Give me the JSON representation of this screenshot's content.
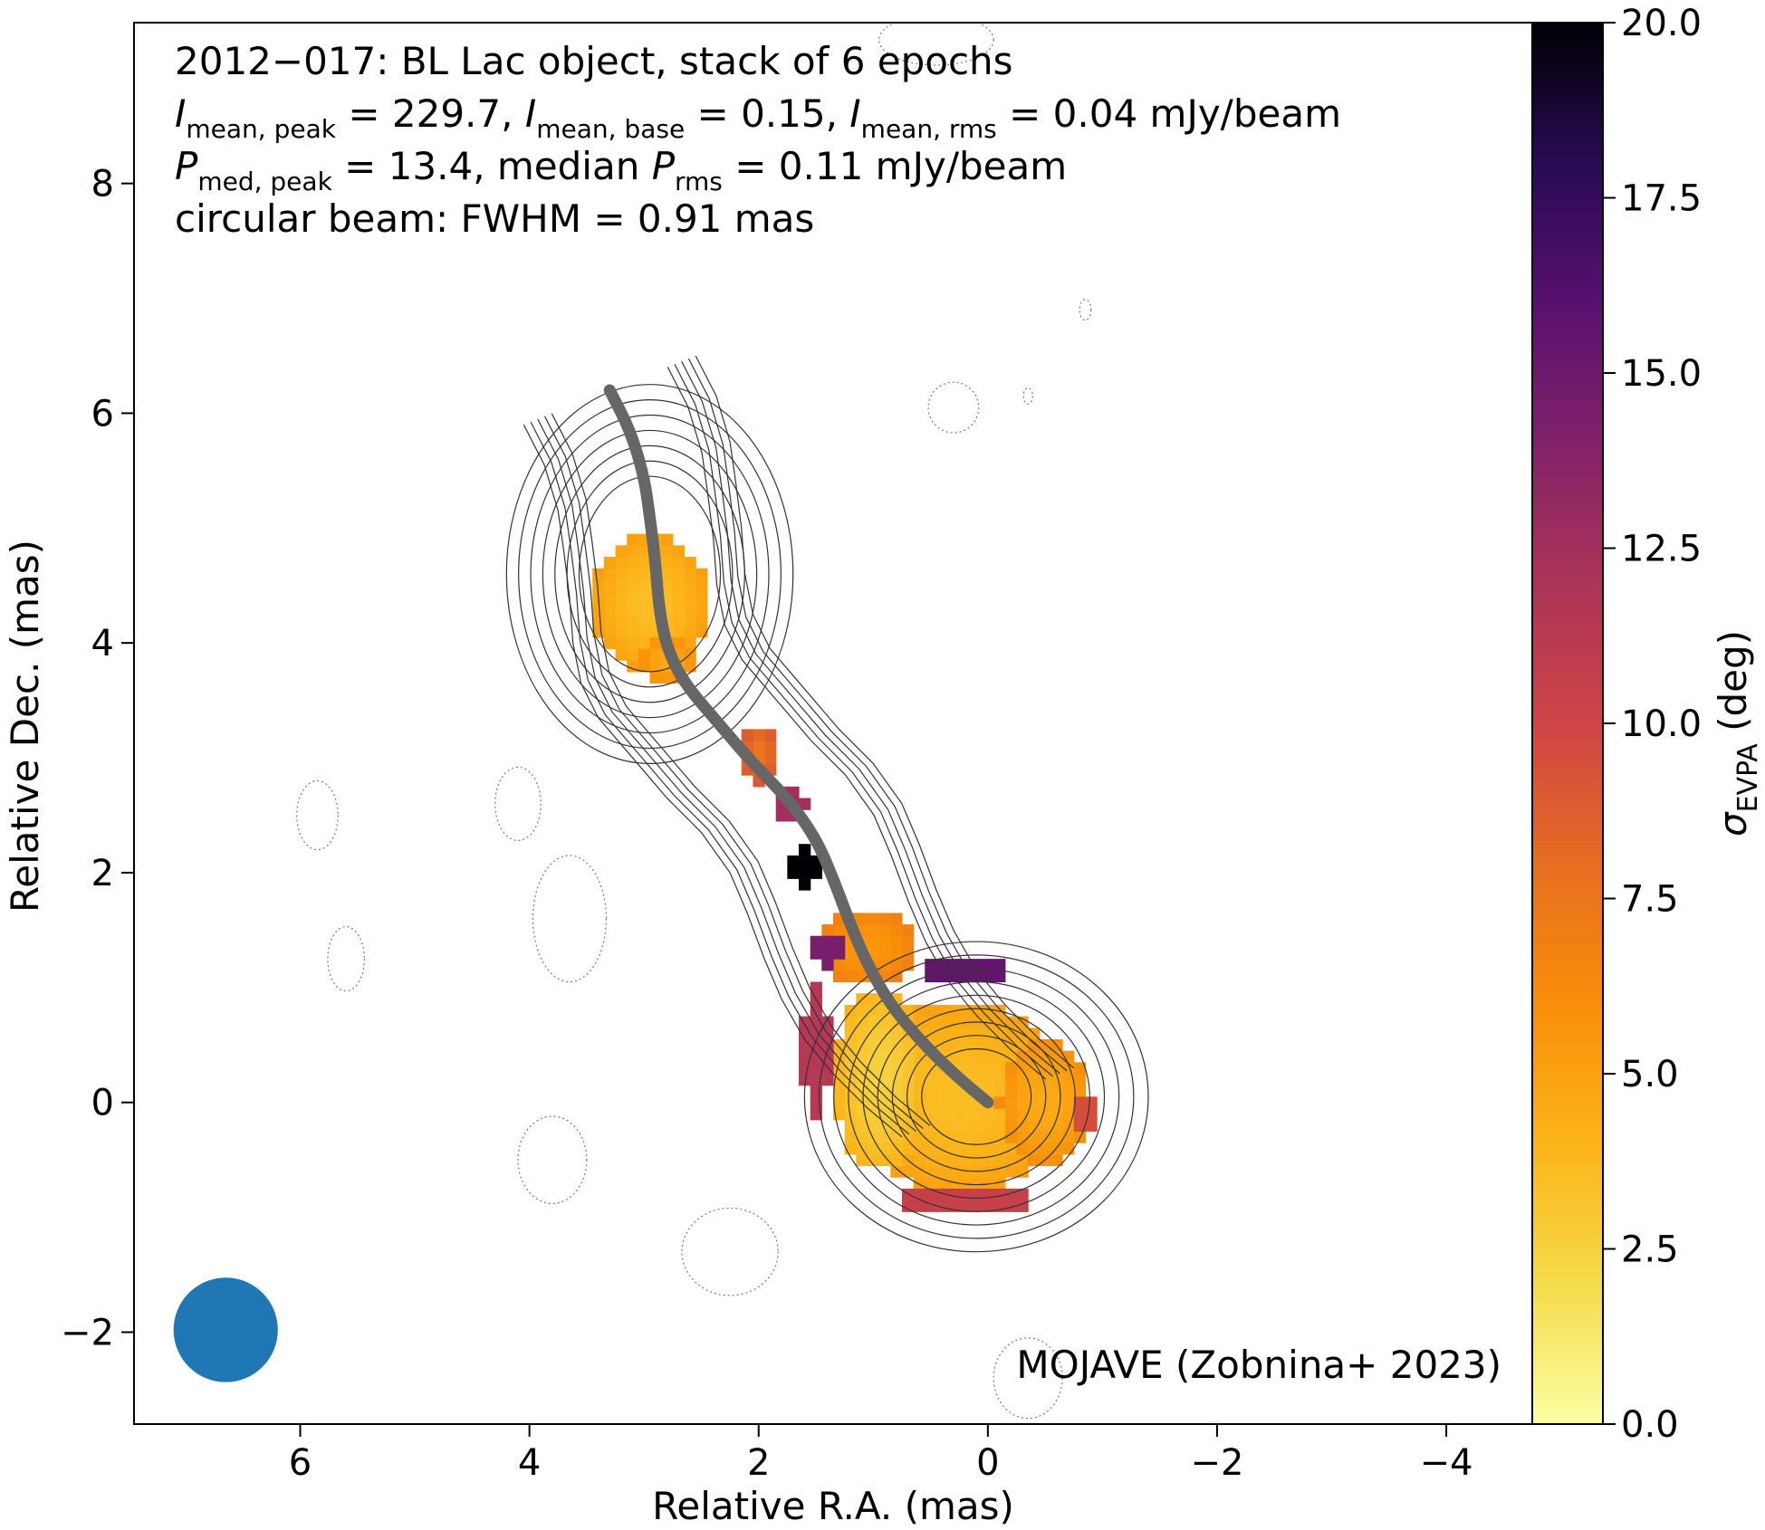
{
  "chart_data": {
    "type": "heatmap",
    "xlabel": "Relative R.A. (mas)",
    "ylabel": "Relative Dec. (mas)",
    "xlim": [
      7.45,
      -4.75
    ],
    "ylim": [
      -2.8,
      9.4
    ],
    "x_ticks": [
      6,
      4,
      2,
      0,
      -2,
      -4
    ],
    "x_tick_labels": [
      "6",
      "4",
      "2",
      "0",
      "−2",
      "−4"
    ],
    "y_ticks": [
      -2,
      0,
      2,
      4,
      6,
      8
    ],
    "y_tick_labels": [
      "−2",
      "0",
      "2",
      "4",
      "6",
      "8"
    ],
    "info": {
      "line1": "2012−017: BL Lac object, stack of 6 epochs",
      "line2": {
        "i1": "I",
        "s1": "mean, peak",
        "v1": " = 229.7, ",
        "i2": "I",
        "s2": "mean, base",
        "v2": " = 0.15, ",
        "i3": "I",
        "s3": "mean, rms",
        "v3": " = 0.04 mJy/beam"
      },
      "line3": {
        "i1": "P",
        "s1": "med, peak",
        "v1": " = 13.4, median ",
        "i2": "P",
        "s2": "rms",
        "v2": " = 0.11 mJy/beam"
      },
      "line4": "circular beam: FWHM = 0.91 mas"
    },
    "credit": "MOJAVE (Zobnina+ 2023)",
    "colorbar": {
      "label_symbol": "σ",
      "label_sub": "EVPA",
      "label_unit": " (deg)",
      "range": [
        0,
        20
      ],
      "ticks": [
        0,
        2.5,
        5,
        7.5,
        10,
        12.5,
        15,
        17.5,
        20
      ],
      "tick_labels": [
        "0.0",
        "2.5",
        "5.0",
        "7.5",
        "10.0",
        "12.5",
        "15.0",
        "17.5",
        "20.0"
      ],
      "colormap": "inferno_r"
    },
    "beam": {
      "fwhm_mas": 0.91,
      "center": [
        6.65,
        -1.98
      ],
      "color": "#1f77b4"
    },
    "ridge_line": {
      "color": "#666666",
      "points": [
        [
          0,
          0
        ],
        [
          0.3,
          0.25
        ],
        [
          0.6,
          0.55
        ],
        [
          0.85,
          0.85
        ],
        [
          1.05,
          1.2
        ],
        [
          1.2,
          1.55
        ],
        [
          1.35,
          1.95
        ],
        [
          1.5,
          2.3
        ],
        [
          1.75,
          2.65
        ],
        [
          2.05,
          2.95
        ],
        [
          2.35,
          3.3
        ],
        [
          2.65,
          3.65
        ],
        [
          2.8,
          3.95
        ],
        [
          2.87,
          4.3
        ],
        [
          2.9,
          4.7
        ],
        [
          2.95,
          5.1
        ],
        [
          3.0,
          5.45
        ],
        [
          3.12,
          5.85
        ],
        [
          3.3,
          6.2
        ]
      ]
    },
    "evpa_regions": [
      {
        "name": "core",
        "center": [
          0.25,
          0.05
        ],
        "radii": [
          0.95,
          0.85
        ],
        "value": 3.5
      },
      {
        "name": "core-west",
        "center": [
          -0.5,
          0.0
        ],
        "radii": [
          0.4,
          0.55
        ],
        "value": 4.5
      },
      {
        "name": "core-east",
        "center": [
          0.95,
          0.2
        ],
        "radii": [
          0.4,
          0.8
        ],
        "value": 2.5
      },
      {
        "name": "jet-north",
        "center": [
          1.05,
          1.35
        ],
        "radii": [
          0.45,
          0.35
        ],
        "value": 5.5
      },
      {
        "name": "knot",
        "center": [
          2.95,
          4.35
        ],
        "radii": [
          0.5,
          0.6
        ],
        "value": 3.5
      },
      {
        "name": "knot-south",
        "center": [
          2.8,
          3.85
        ],
        "radii": [
          0.25,
          0.2
        ],
        "value": 4.5
      },
      {
        "name": "edge-east",
        "center": [
          1.5,
          0.45
        ],
        "radii": [
          0.12,
          0.55
        ],
        "value": 11.5
      },
      {
        "name": "edge-northeast",
        "center": [
          1.4,
          1.35
        ],
        "radii": [
          0.15,
          0.15
        ],
        "value": 14.5
      },
      {
        "name": "edge-north",
        "center": [
          0.2,
          1.15
        ],
        "radii": [
          0.35,
          0.12
        ],
        "value": 15.5
      },
      {
        "name": "edge-south",
        "center": [
          0.2,
          -0.85
        ],
        "radii": [
          0.65,
          0.1
        ],
        "value": 10.5
      },
      {
        "name": "jet-mid-a",
        "center": [
          2.0,
          3.05
        ],
        "radii": [
          0.15,
          0.25
        ],
        "value": 7.5
      },
      {
        "name": "jet-mid-b",
        "center": [
          1.75,
          2.6
        ],
        "radii": [
          0.15,
          0.12
        ],
        "value": 12.5
      },
      {
        "name": "jet-black",
        "center": [
          1.6,
          2.05
        ],
        "radii": [
          0.12,
          0.18
        ],
        "value": 20
      },
      {
        "name": "edge-west",
        "center": [
          -0.85,
          -0.1
        ],
        "radii": [
          0.1,
          0.2
        ],
        "value": 9.5
      }
    ],
    "contours": {
      "positive_levels": 9,
      "negative_regions": [
        {
          "center": [
            5.85,
            2.5
          ],
          "radii": [
            0.18,
            0.3
          ]
        },
        {
          "center": [
            4.1,
            2.6
          ],
          "radii": [
            0.2,
            0.32
          ]
        },
        {
          "center": [
            5.6,
            1.25
          ],
          "radii": [
            0.16,
            0.28
          ]
        },
        {
          "center": [
            3.65,
            1.6
          ],
          "radii": [
            0.32,
            0.55
          ]
        },
        {
          "center": [
            3.8,
            -0.5
          ],
          "radii": [
            0.3,
            0.38
          ]
        },
        {
          "center": [
            2.25,
            -1.3
          ],
          "radii": [
            0.42,
            0.38
          ]
        },
        {
          "center": [
            0.3,
            6.05
          ],
          "radii": [
            0.22,
            0.22
          ]
        },
        {
          "center": [
            -0.85,
            6.9
          ],
          "radii": [
            0.05,
            0.09
          ]
        },
        {
          "center": [
            -0.35,
            6.15
          ],
          "radii": [
            0.04,
            0.07
          ]
        },
        {
          "center": [
            0.45,
            9.25
          ],
          "radii": [
            0.5,
            0.22
          ]
        },
        {
          "center": [
            -0.35,
            -2.4
          ],
          "radii": [
            0.3,
            0.35
          ]
        }
      ]
    }
  }
}
